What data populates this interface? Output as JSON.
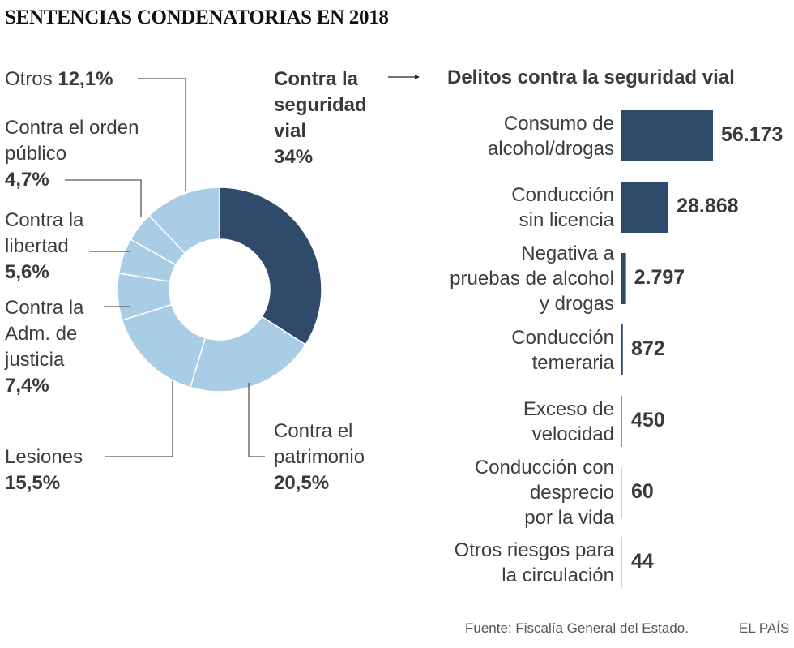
{
  "chart_data": [
    {
      "type": "pie",
      "title": "SENTENCIAS CONDENATORIAS EN 2018",
      "variant": "donut",
      "unit": "%",
      "slices": [
        {
          "label": "Contra la seguridad vial",
          "label_lines": [
            "Contra la",
            "seguridad",
            "vial"
          ],
          "value": 34,
          "value_text": "34%",
          "color": "#2f4a6b"
        },
        {
          "label": "Contra el patrimonio",
          "label_lines": [
            "Contra el",
            "patrimonio"
          ],
          "value": 20.5,
          "value_text": "20,5%",
          "color": "#a9cde4"
        },
        {
          "label": "Lesiones",
          "label_lines": [
            "Lesiones"
          ],
          "value": 15.5,
          "value_text": "15,5%",
          "color": "#a9cde4"
        },
        {
          "label": "Contra la Adm. de justicia",
          "label_lines": [
            "Contra la",
            "Adm. de",
            "justicia"
          ],
          "value": 7.4,
          "value_text": "7,4%",
          "color": "#a9cde4"
        },
        {
          "label": "Contra la libertad",
          "label_lines": [
            "Contra la",
            "libertad"
          ],
          "value": 5.6,
          "value_text": "5,6%",
          "color": "#a9cde4"
        },
        {
          "label": "Contra el orden público",
          "label_lines": [
            "Contra el orden",
            "público"
          ],
          "value": 4.7,
          "value_text": "4,7%",
          "color": "#a9cde4"
        },
        {
          "label": "Otros",
          "label_lines": [
            "Otros"
          ],
          "value": 12.1,
          "value_text": "12,1%",
          "color": "#a9cde4"
        }
      ]
    },
    {
      "type": "bar",
      "orientation": "horizontal",
      "title": "Delitos contra la seguridad vial",
      "categories": [
        "Consumo de alcohol/drogas",
        "Conducción sin licencia",
        "Negativa a pruebas de alcohol y drogas",
        "Conducción temeraria",
        "Exceso de velocidad",
        "Conducción con desprecio por la vida",
        "Otros riesgos para la circulación"
      ],
      "category_lines": [
        [
          "Consumo de",
          "alcohol/drogas"
        ],
        [
          "Conducción",
          "sin licencia"
        ],
        [
          "Negativa a",
          "pruebas de alcohol",
          "y drogas"
        ],
        [
          "Conducción",
          "temeraria"
        ],
        [
          "Exceso de",
          "velocidad"
        ],
        [
          "Conducción con",
          "desprecio",
          "por la vida"
        ],
        [
          "Otros riesgos para",
          "la circulación"
        ]
      ],
      "values": [
        56173,
        28868,
        2797,
        872,
        450,
        60,
        44
      ],
      "value_labels": [
        "56.173",
        "28.868",
        "2.797",
        "872",
        "450",
        "60",
        "44"
      ],
      "bar_color": "#2f4a6b",
      "xlim": [
        0,
        56173
      ]
    }
  ],
  "header": {
    "title": "SENTENCIAS CONDENATORIAS EN 2018"
  },
  "arrow_icon": "right-arrow",
  "footer": {
    "source": "Fuente: Fiscalía General del Estado.",
    "brand": "EL PAÍS"
  }
}
